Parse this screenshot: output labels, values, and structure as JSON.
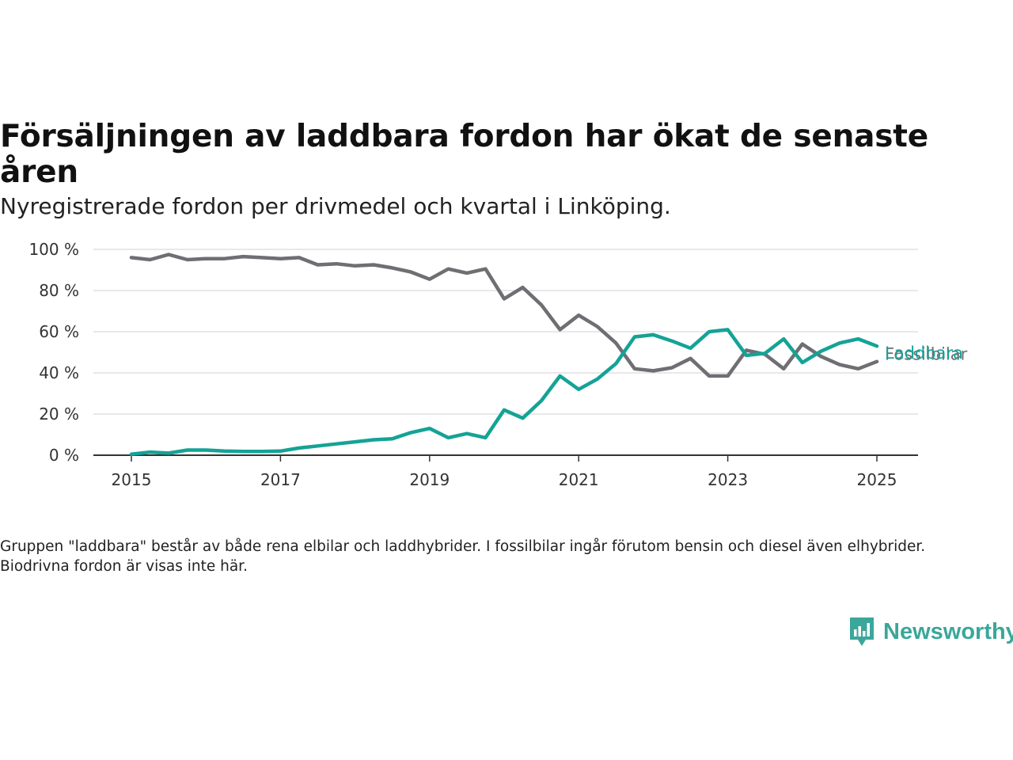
{
  "title": "Försäljningen av laddbara fordon har ökat de senaste åren",
  "subtitle": "Nyregistrerade fordon per drivmedel och kvartal i Linköping.",
  "footnote": "Gruppen \"laddbara\" består av både rena elbilar och laddhybrider. I fossilbilar ingår förutom bensin och diesel även elhybrider. Biodrivna fordon är visas inte här.",
  "brand": {
    "name": "Newsworthy",
    "color": "#3aa79a",
    "icon": "bar-chart-speech-bubble-icon"
  },
  "chart_data": {
    "type": "line",
    "x_ticks": [
      "2015",
      "2017",
      "2019",
      "2021",
      "2023",
      "2025"
    ],
    "y_ticks": [
      "0 %",
      "20 %",
      "40 %",
      "60 %",
      "80 %",
      "100 %"
    ],
    "ylim": [
      0,
      100
    ],
    "xlim": [
      "2014-10",
      "2025-06"
    ],
    "grid": true,
    "legend": "line-end labels",
    "x": [
      "2015-Q1",
      "2015-Q2",
      "2015-Q3",
      "2015-Q4",
      "2016-Q1",
      "2016-Q2",
      "2016-Q3",
      "2016-Q4",
      "2017-Q1",
      "2017-Q2",
      "2017-Q3",
      "2017-Q4",
      "2018-Q1",
      "2018-Q2",
      "2018-Q3",
      "2018-Q4",
      "2019-Q1",
      "2019-Q2",
      "2019-Q3",
      "2019-Q4",
      "2020-Q1",
      "2020-Q2",
      "2020-Q3",
      "2020-Q4",
      "2021-Q1",
      "2021-Q2",
      "2021-Q3",
      "2021-Q4",
      "2022-Q1",
      "2022-Q2",
      "2022-Q3",
      "2022-Q4",
      "2023-Q1",
      "2023-Q2",
      "2023-Q3",
      "2023-Q4",
      "2024-Q1",
      "2024-Q2",
      "2024-Q3",
      "2024-Q4",
      "2025-Q1"
    ],
    "series": [
      {
        "name": "Fossilbilar",
        "color": "#6e6e73",
        "values": [
          96,
          95,
          97.5,
          95,
          95.5,
          95.5,
          96.5,
          96,
          95.5,
          96,
          92.5,
          93,
          92,
          92.5,
          91,
          89,
          85.5,
          90.5,
          88.5,
          90.5,
          76,
          81.5,
          73,
          61,
          68,
          62.5,
          54.5,
          42,
          41,
          42.5,
          47,
          38.5,
          38.5,
          51,
          49,
          42,
          54,
          48,
          44,
          42,
          45.5
        ]
      },
      {
        "name": "Laddbara",
        "color": "#14a396",
        "values": [
          0.5,
          1.5,
          1,
          2.5,
          2.5,
          2,
          1.8,
          1.8,
          2,
          3.5,
          4.5,
          5.5,
          6.5,
          7.5,
          8,
          11,
          13,
          8.5,
          10.5,
          8.5,
          22,
          18,
          26.5,
          38.5,
          32,
          37,
          44.5,
          57.5,
          58.5,
          55.5,
          52,
          60,
          61,
          48.5,
          49.5,
          56.5,
          45,
          50.5,
          54.5,
          56.5,
          53
        ]
      }
    ]
  }
}
